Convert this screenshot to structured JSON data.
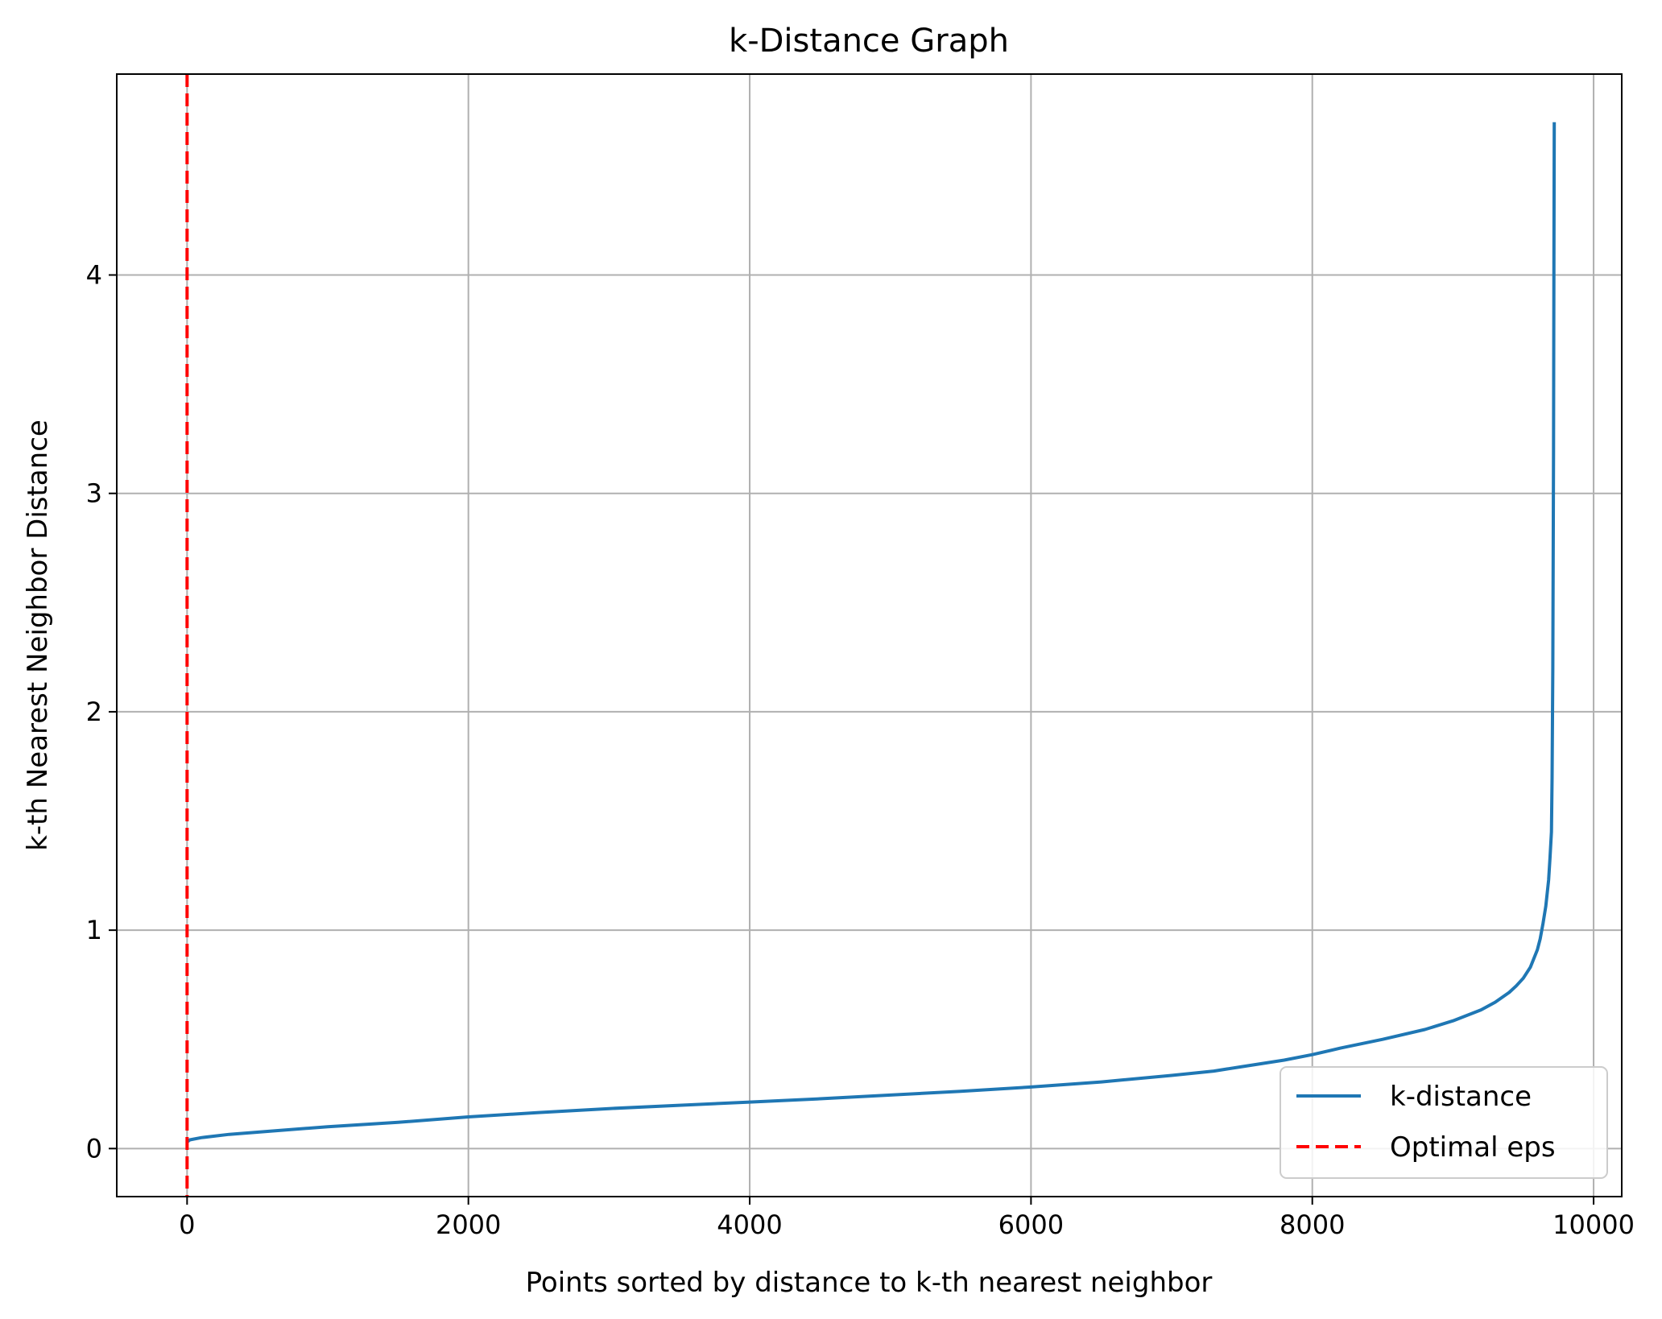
{
  "chart_data": {
    "type": "line",
    "title": "k-Distance Graph",
    "xlabel": "Points sorted by distance to k-th nearest neighbor",
    "ylabel": "k-th Nearest Neighbor Distance",
    "xlim": [
      -500,
      10200
    ],
    "ylim": [
      -0.22,
      4.92
    ],
    "x_ticks": [
      0,
      2000,
      4000,
      6000,
      8000,
      10000
    ],
    "x_tick_labels": [
      "0",
      "2000",
      "4000",
      "6000",
      "8000",
      "10000"
    ],
    "y_ticks": [
      0,
      1,
      2,
      3,
      4
    ],
    "y_tick_labels": [
      "0",
      "1",
      "2",
      "3",
      "4"
    ],
    "grid": true,
    "legend_position": "lower-right",
    "series": [
      {
        "name": "k-distance",
        "color": "#1f77b4",
        "style": "solid",
        "x": [
          0,
          20,
          100,
          300,
          600,
          1000,
          1500,
          2000,
          2500,
          3000,
          3500,
          4000,
          4500,
          5000,
          5500,
          6000,
          6500,
          7000,
          7300,
          7500,
          7800,
          8000,
          8200,
          8500,
          8800,
          9000,
          9200,
          9300,
          9400,
          9450,
          9500,
          9550,
          9600,
          9620,
          9640,
          9660,
          9680,
          9690,
          9700,
          9705,
          9710,
          9715,
          9718,
          9720
        ],
        "y": [
          0.03,
          0.04,
          0.05,
          0.065,
          0.08,
          0.1,
          0.12,
          0.145,
          0.165,
          0.183,
          0.198,
          0.213,
          0.228,
          0.245,
          0.262,
          0.282,
          0.305,
          0.335,
          0.355,
          0.375,
          0.405,
          0.43,
          0.46,
          0.5,
          0.545,
          0.585,
          0.635,
          0.67,
          0.715,
          0.745,
          0.78,
          0.83,
          0.91,
          0.96,
          1.03,
          1.11,
          1.23,
          1.33,
          1.45,
          1.7,
          2.2,
          3.2,
          4.1,
          4.7
        ]
      },
      {
        "name": "Optimal eps",
        "color": "#ff0000",
        "style": "dashed",
        "vline_x": 0
      }
    ]
  }
}
